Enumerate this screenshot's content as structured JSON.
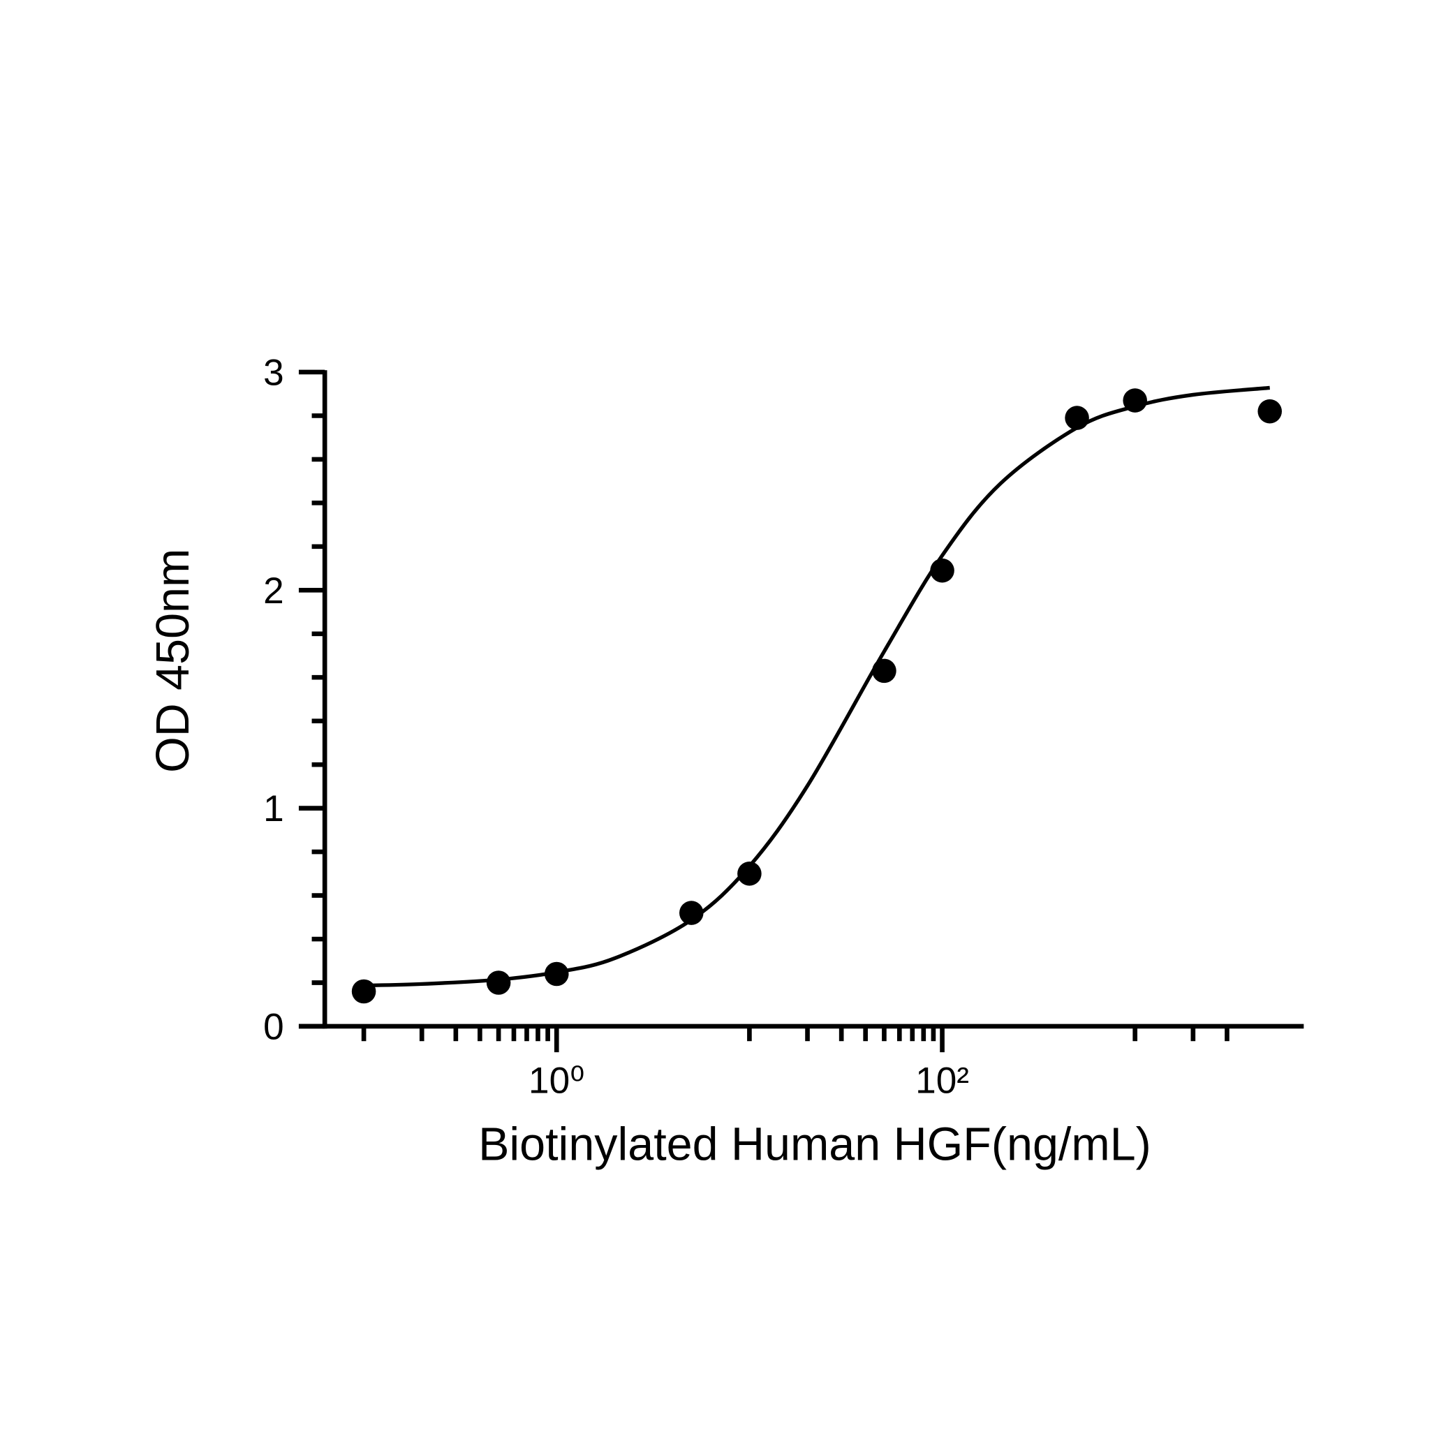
{
  "chart_data": {
    "type": "scatter",
    "x_label": "Biotinylated Human HGF(ng/mL)",
    "y_label": "OD 450nm",
    "x_log": true,
    "xlim": [
      0.046,
      7500
    ],
    "xticks": [
      {
        "value": 1,
        "label": "10⁰"
      },
      {
        "value": 100,
        "label": "10²"
      }
    ],
    "xminorticks": [
      0.1,
      0.2,
      0.3,
      0.4,
      0.5,
      0.6,
      0.7,
      0.8,
      0.9,
      10,
      20,
      30,
      40,
      50,
      60,
      70,
      80,
      90,
      1000,
      2000,
      3000
    ],
    "ylim": [
      0,
      3
    ],
    "yticks": [
      0,
      1,
      2,
      3
    ],
    "yminorticks": [
      0.2,
      0.4,
      0.6,
      0.8,
      1.2,
      1.4,
      1.6,
      1.8,
      2.2,
      2.4,
      2.6,
      2.8
    ],
    "color": "#000000",
    "series": [
      {
        "x": [
          0.1,
          0.5,
          1,
          5,
          10,
          50,
          100,
          500,
          1000,
          5000
        ],
        "values": [
          0.16,
          0.2,
          0.24,
          0.52,
          0.7,
          1.63,
          2.09,
          2.79,
          2.87,
          2.82
        ]
      }
    ],
    "fit": {
      "x": [
        0.1,
        0.2,
        0.5,
        1,
        2,
        5,
        10,
        20,
        50,
        100,
        200,
        500,
        1000,
        2000,
        5000
      ],
      "values": [
        0.187,
        0.194,
        0.214,
        0.248,
        0.312,
        0.488,
        0.734,
        1.103,
        1.719,
        2.159,
        2.488,
        2.745,
        2.843,
        2.896,
        2.928
      ]
    }
  }
}
